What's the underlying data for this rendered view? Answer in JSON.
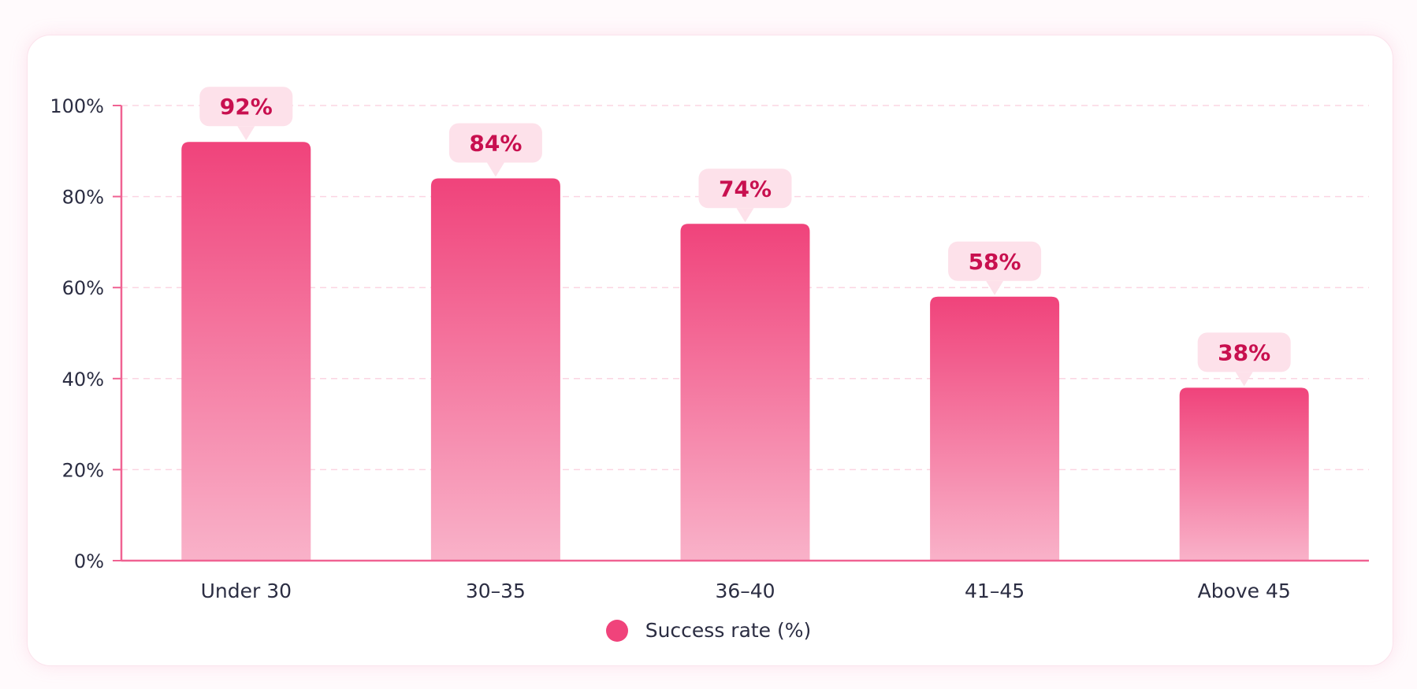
{
  "chart_data": {
    "type": "bar",
    "categories": [
      "Under 30",
      "30–35",
      "36–40",
      "41–45",
      "Above 45"
    ],
    "series": [
      {
        "name": "Success rate (%)",
        "values": [
          92,
          84,
          74,
          58,
          38
        ],
        "data_labels": [
          "92%",
          "84%",
          "74%",
          "58%",
          "38%"
        ]
      }
    ],
    "y_ticks": [
      0,
      20,
      40,
      60,
      80,
      100
    ],
    "y_tick_labels": [
      "0%",
      "20%",
      "40%",
      "60%",
      "80%",
      "100%"
    ],
    "ylim": [
      0,
      100
    ],
    "grid": "horizontal dashed",
    "legend": {
      "placement": "bottom-center",
      "label": "Success rate (%)"
    },
    "colors": {
      "bar_top": "#f0437b",
      "bar_bottom": "#f9b2c9",
      "axis": "#f06292",
      "gridline": "#fbd5e2",
      "label_bubble": "#fde1ea",
      "label_text": "#c8104f",
      "tick_text": "#2b2d42",
      "legend_marker": "#f0437b"
    }
  }
}
